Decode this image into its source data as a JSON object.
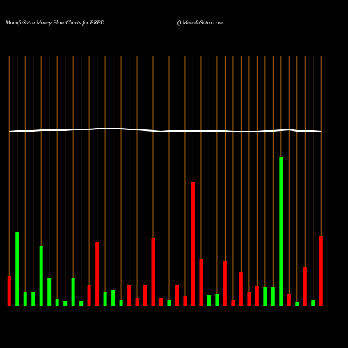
{
  "chart_data": {
    "type": "bar",
    "title": "MunafaSutra  Money Flow  Charts for PRFD",
    "subtitle": "() MunafaSutra.com",
    "categories": [
      null,
      null,
      null,
      null,
      null,
      null,
      null,
      null,
      null,
      null,
      null,
      null,
      null,
      null,
      null,
      null,
      null,
      null,
      null,
      null,
      null,
      null,
      null,
      null,
      null,
      null,
      null,
      null,
      null,
      null,
      null,
      null,
      null,
      null,
      null,
      null,
      null,
      null,
      null,
      null
    ],
    "values": [
      43,
      107,
      21,
      21,
      86,
      41,
      10,
      7,
      41,
      7,
      30,
      93,
      20,
      24,
      9,
      31,
      12,
      30,
      98,
      12,
      9,
      30,
      15,
      178,
      68,
      16,
      17,
      65,
      9,
      49,
      20,
      29,
      28,
      27,
      215,
      17,
      6,
      56,
      9,
      101
    ],
    "colors": [
      "#ff0000",
      "#00ff00",
      "#00ff00",
      "#00ff00",
      "#00ff00",
      "#00ff00",
      "#00ff00",
      "#00ff00",
      "#00ff00",
      "#00ff00",
      "#ff0000",
      "#ff0000",
      "#00ff00",
      "#00ff00",
      "#00ff00",
      "#ff0000",
      "#ff0000",
      "#ff0000",
      "#ff0000",
      "#ff0000",
      "#00ff00",
      "#ff0000",
      "#ff0000",
      "#ff0000",
      "#ff0000",
      "#00ff00",
      "#00ff00",
      "#ff0000",
      "#ff0000",
      "#ff0000",
      "#ff0000",
      "#ff0000",
      "#00ff00",
      "#00ff00",
      "#00ff00",
      "#ff0000",
      "#00ff00",
      "#ff0000",
      "#00ff00",
      "#ff0000"
    ],
    "line": {
      "color": "#ffffff",
      "values": [
        251,
        252,
        252,
        252,
        253,
        253,
        253,
        253,
        254,
        254,
        254,
        255,
        255,
        255,
        255,
        254,
        254,
        253,
        252,
        251,
        252,
        252,
        252,
        252,
        252,
        252,
        252,
        252,
        251,
        251,
        251,
        251,
        252,
        252,
        253,
        254,
        252,
        252,
        252,
        251
      ]
    },
    "ylim": [
      0,
      440
    ],
    "grid": true
  }
}
